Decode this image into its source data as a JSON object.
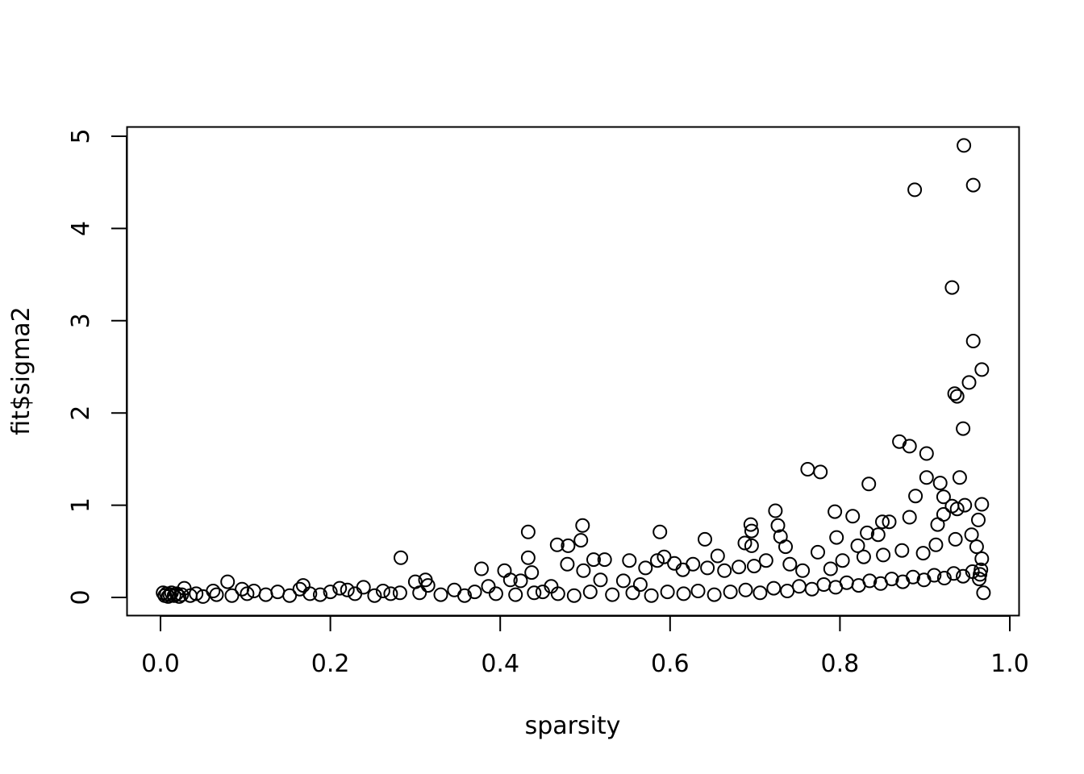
{
  "chart_data": {
    "type": "scatter",
    "title": "",
    "xlabel": "sparsity",
    "ylabel": "fit$sigma2",
    "xlim": [
      0,
      1
    ],
    "ylim": [
      0,
      5
    ],
    "x_ticks": [
      "0.0",
      "0.2",
      "0.4",
      "0.6",
      "0.8",
      "1.0"
    ],
    "y_ticks": [
      "0",
      "1",
      "2",
      "3",
      "4",
      "5"
    ],
    "grid": false,
    "legend": "none",
    "marker": "open-circle",
    "point_color": "#000000",
    "points": [
      [
        0.946,
        4.9
      ],
      [
        0.888,
        4.42
      ],
      [
        0.957,
        4.47
      ],
      [
        0.932,
        3.36
      ],
      [
        0.957,
        2.78
      ],
      [
        0.967,
        2.47
      ],
      [
        0.952,
        2.33
      ],
      [
        0.935,
        2.21
      ],
      [
        0.938,
        2.18
      ],
      [
        0.945,
        1.83
      ],
      [
        0.87,
        1.69
      ],
      [
        0.882,
        1.64
      ],
      [
        0.902,
        1.56
      ],
      [
        0.762,
        1.39
      ],
      [
        0.777,
        1.36
      ],
      [
        0.902,
        1.3
      ],
      [
        0.941,
        1.3
      ],
      [
        0.918,
        1.24
      ],
      [
        0.834,
        1.23
      ],
      [
        0.889,
        1.1
      ],
      [
        0.922,
        1.09
      ],
      [
        0.967,
        1.01
      ],
      [
        0.947,
        1.0
      ],
      [
        0.932,
        0.99
      ],
      [
        0.938,
        0.96
      ],
      [
        0.724,
        0.94
      ],
      [
        0.794,
        0.93
      ],
      [
        0.922,
        0.9
      ],
      [
        0.815,
        0.88
      ],
      [
        0.882,
        0.87
      ],
      [
        0.963,
        0.84
      ],
      [
        0.85,
        0.82
      ],
      [
        0.858,
        0.82
      ],
      [
        0.695,
        0.79
      ],
      [
        0.727,
        0.78
      ],
      [
        0.497,
        0.78
      ],
      [
        0.915,
        0.79
      ],
      [
        0.696,
        0.72
      ],
      [
        0.433,
        0.71
      ],
      [
        0.588,
        0.71
      ],
      [
        0.832,
        0.7
      ],
      [
        0.845,
        0.68
      ],
      [
        0.73,
        0.66
      ],
      [
        0.796,
        0.65
      ],
      [
        0.641,
        0.63
      ],
      [
        0.495,
        0.62
      ],
      [
        0.467,
        0.57
      ],
      [
        0.48,
        0.56
      ],
      [
        0.736,
        0.55
      ],
      [
        0.696,
        0.56
      ],
      [
        0.821,
        0.56
      ],
      [
        0.688,
        0.59
      ],
      [
        0.774,
        0.49
      ],
      [
        0.656,
        0.45
      ],
      [
        0.283,
        0.43
      ],
      [
        0.433,
        0.43
      ],
      [
        0.593,
        0.44
      ],
      [
        0.51,
        0.41
      ],
      [
        0.523,
        0.41
      ],
      [
        0.552,
        0.4
      ],
      [
        0.585,
        0.4
      ],
      [
        0.605,
        0.37
      ],
      [
        0.378,
        0.31
      ],
      [
        0.405,
        0.29
      ],
      [
        0.479,
        0.36
      ],
      [
        0.498,
        0.29
      ],
      [
        0.437,
        0.27
      ],
      [
        0.571,
        0.32
      ],
      [
        0.615,
        0.3
      ],
      [
        0.627,
        0.36
      ],
      [
        0.644,
        0.32
      ],
      [
        0.664,
        0.29
      ],
      [
        0.681,
        0.33
      ],
      [
        0.699,
        0.34
      ],
      [
        0.713,
        0.4
      ],
      [
        0.741,
        0.36
      ],
      [
        0.756,
        0.29
      ],
      [
        0.789,
        0.31
      ],
      [
        0.803,
        0.4
      ],
      [
        0.828,
        0.44
      ],
      [
        0.851,
        0.46
      ],
      [
        0.873,
        0.51
      ],
      [
        0.898,
        0.48
      ],
      [
        0.913,
        0.57
      ],
      [
        0.936,
        0.63
      ],
      [
        0.955,
        0.68
      ],
      [
        0.961,
        0.55
      ],
      [
        0.967,
        0.42
      ],
      [
        0.966,
        0.3
      ],
      [
        0.964,
        0.2
      ],
      [
        0.028,
        0.1
      ],
      [
        0.079,
        0.17
      ],
      [
        0.164,
        0.09
      ],
      [
        0.168,
        0.13
      ],
      [
        0.3,
        0.17
      ],
      [
        0.312,
        0.19
      ],
      [
        0.315,
        0.13
      ],
      [
        0.239,
        0.11
      ],
      [
        0.211,
        0.1
      ],
      [
        0.11,
        0.07
      ],
      [
        0.062,
        0.07
      ],
      [
        0.096,
        0.09
      ],
      [
        0.138,
        0.06
      ],
      [
        0.176,
        0.04
      ],
      [
        0.2,
        0.06
      ],
      [
        0.22,
        0.08
      ],
      [
        0.262,
        0.07
      ],
      [
        0.282,
        0.05
      ],
      [
        0.346,
        0.08
      ],
      [
        0.37,
        0.06
      ],
      [
        0.386,
        0.12
      ],
      [
        0.412,
        0.19
      ],
      [
        0.424,
        0.18
      ],
      [
        0.45,
        0.06
      ],
      [
        0.46,
        0.12
      ],
      [
        0.518,
        0.19
      ],
      [
        0.545,
        0.18
      ],
      [
        0.565,
        0.14
      ],
      [
        0.003,
        0.05
      ],
      [
        0.005,
        0.02
      ],
      [
        0.007,
        0.04
      ],
      [
        0.009,
        0.01
      ],
      [
        0.011,
        0.03
      ],
      [
        0.013,
        0.05
      ],
      [
        0.016,
        0.02
      ],
      [
        0.019,
        0.04
      ],
      [
        0.022,
        0.01
      ],
      [
        0.025,
        0.03
      ],
      [
        0.035,
        0.02
      ],
      [
        0.042,
        0.04
      ],
      [
        0.05,
        0.01
      ],
      [
        0.066,
        0.03
      ],
      [
        0.084,
        0.02
      ],
      [
        0.102,
        0.04
      ],
      [
        0.124,
        0.03
      ],
      [
        0.152,
        0.02
      ],
      [
        0.188,
        0.03
      ],
      [
        0.229,
        0.04
      ],
      [
        0.252,
        0.02
      ],
      [
        0.271,
        0.04
      ],
      [
        0.305,
        0.05
      ],
      [
        0.33,
        0.03
      ],
      [
        0.358,
        0.02
      ],
      [
        0.395,
        0.04
      ],
      [
        0.418,
        0.03
      ],
      [
        0.44,
        0.05
      ],
      [
        0.468,
        0.04
      ],
      [
        0.487,
        0.02
      ],
      [
        0.506,
        0.06
      ],
      [
        0.532,
        0.03
      ],
      [
        0.556,
        0.05
      ],
      [
        0.578,
        0.02
      ],
      [
        0.597,
        0.06
      ],
      [
        0.616,
        0.04
      ],
      [
        0.633,
        0.07
      ],
      [
        0.652,
        0.03
      ],
      [
        0.671,
        0.06
      ],
      [
        0.689,
        0.08
      ],
      [
        0.706,
        0.05
      ],
      [
        0.722,
        0.1
      ],
      [
        0.738,
        0.07
      ],
      [
        0.752,
        0.12
      ],
      [
        0.767,
        0.09
      ],
      [
        0.781,
        0.14
      ],
      [
        0.795,
        0.11
      ],
      [
        0.808,
        0.16
      ],
      [
        0.822,
        0.13
      ],
      [
        0.835,
        0.18
      ],
      [
        0.848,
        0.15
      ],
      [
        0.861,
        0.2
      ],
      [
        0.874,
        0.17
      ],
      [
        0.886,
        0.22
      ],
      [
        0.899,
        0.19
      ],
      [
        0.911,
        0.24
      ],
      [
        0.923,
        0.21
      ],
      [
        0.934,
        0.26
      ],
      [
        0.945,
        0.23
      ],
      [
        0.956,
        0.28
      ],
      [
        0.965,
        0.25
      ],
      [
        0.969,
        0.05
      ]
    ]
  }
}
